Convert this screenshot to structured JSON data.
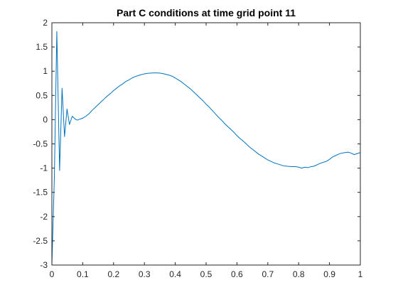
{
  "chart_data": {
    "type": "line",
    "title": "Part C conditions at time grid point 11",
    "xlabel": "",
    "ylabel": "",
    "xlim": [
      0,
      1
    ],
    "ylim": [
      -3,
      2
    ],
    "xticks": [
      0,
      0.1,
      0.2,
      0.3,
      0.4,
      0.5,
      0.6,
      0.7,
      0.8,
      0.9,
      1
    ],
    "xtick_labels": [
      "0",
      "0.1",
      "0.2",
      "0.3",
      "0.4",
      "0.5",
      "0.6",
      "0.7",
      "0.8",
      "0.9",
      "1"
    ],
    "yticks": [
      -3,
      -2.5,
      -2,
      -1.5,
      -1,
      -0.5,
      0,
      0.5,
      1,
      1.5,
      2
    ],
    "ytick_labels": [
      "-3",
      "-2.5",
      "-2",
      "-1.5",
      "-1",
      "-0.5",
      "0",
      "0.5",
      "1",
      "1.5",
      "2"
    ],
    "grid": false,
    "box": true,
    "colors": {
      "line": "#0072BD",
      "axes": "#262626",
      "background": "#ffffff"
    },
    "series": [
      {
        "x": [
          0,
          0.008,
          0.016,
          0.025,
          0.033,
          0.041,
          0.049,
          0.057,
          0.066,
          0.074,
          0.082,
          0.09,
          0.1,
          0.11,
          0.12,
          0.13,
          0.14,
          0.15,
          0.16,
          0.17,
          0.18,
          0.19,
          0.2,
          0.21,
          0.22,
          0.23,
          0.24,
          0.25,
          0.26,
          0.27,
          0.28,
          0.29,
          0.3,
          0.31,
          0.32,
          0.33,
          0.34,
          0.35,
          0.36,
          0.37,
          0.38,
          0.39,
          0.4,
          0.41,
          0.42,
          0.43,
          0.44,
          0.45,
          0.46,
          0.47,
          0.48,
          0.49,
          0.5,
          0.51,
          0.52,
          0.53,
          0.54,
          0.55,
          0.56,
          0.57,
          0.58,
          0.59,
          0.6,
          0.61,
          0.62,
          0.63,
          0.64,
          0.65,
          0.66,
          0.67,
          0.68,
          0.69,
          0.7,
          0.71,
          0.72,
          0.73,
          0.74,
          0.75,
          0.76,
          0.77,
          0.78,
          0.79,
          0.8,
          0.81,
          0.82,
          0.83,
          0.84,
          0.85,
          0.86,
          0.87,
          0.88,
          0.885,
          0.89,
          0.9,
          0.91,
          0.92,
          0.93,
          0.94,
          0.95,
          0.96,
          0.97,
          0.98,
          0.99,
          1
        ],
        "y": [
          -3,
          -1.2,
          1.82,
          -1.05,
          0.65,
          -0.35,
          0.22,
          -0.1,
          0.07,
          0.02,
          -0.01,
          0.01,
          0.03,
          0.07,
          0.12,
          0.19,
          0.25,
          0.31,
          0.37,
          0.43,
          0.49,
          0.54,
          0.6,
          0.65,
          0.7,
          0.74,
          0.79,
          0.82,
          0.86,
          0.89,
          0.91,
          0.93,
          0.945,
          0.955,
          0.96,
          0.965,
          0.965,
          0.96,
          0.95,
          0.935,
          0.92,
          0.895,
          0.86,
          0.82,
          0.78,
          0.73,
          0.68,
          0.63,
          0.57,
          0.51,
          0.45,
          0.39,
          0.32,
          0.26,
          0.19,
          0.12,
          0.05,
          -0.01,
          -0.08,
          -0.14,
          -0.2,
          -0.26,
          -0.33,
          -0.39,
          -0.44,
          -0.5,
          -0.56,
          -0.61,
          -0.66,
          -0.71,
          -0.75,
          -0.79,
          -0.83,
          -0.86,
          -0.89,
          -0.91,
          -0.93,
          -0.95,
          -0.96,
          -0.965,
          -0.97,
          -0.97,
          -0.98,
          -1.0,
          -0.98,
          -0.99,
          -0.97,
          -0.96,
          -0.93,
          -0.9,
          -0.88,
          -0.87,
          -0.86,
          -0.82,
          -0.77,
          -0.74,
          -0.71,
          -0.69,
          -0.68,
          -0.67,
          -0.69,
          -0.72,
          -0.7,
          -0.68
        ]
      }
    ]
  }
}
